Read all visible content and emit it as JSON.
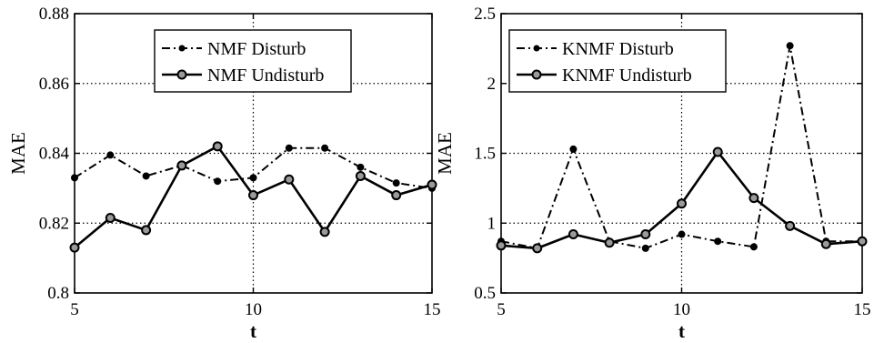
{
  "chart_data": [
    {
      "type": "line",
      "title": "",
      "xlabel": "t",
      "ylabel": "MAE",
      "xlim": [
        5,
        15
      ],
      "ylim": [
        0.8,
        0.88
      ],
      "xticks": [
        5,
        10,
        15
      ],
      "xtick_labels": [
        "5",
        "10",
        "15"
      ],
      "yticks": [
        0.8,
        0.82,
        0.84,
        0.86,
        0.88
      ],
      "ytick_labels": [
        "0.8",
        "0.82",
        "0.84",
        "0.86",
        "0.88"
      ],
      "grid": true,
      "legend_position": "top-center",
      "x": [
        5,
        6,
        7,
        8,
        9,
        10,
        11,
        12,
        13,
        14,
        15
      ],
      "series": [
        {
          "name": "NMF Disturb",
          "style": "dash-dot",
          "marker": "dot",
          "values": [
            0.833,
            0.8395,
            0.8335,
            0.8365,
            0.832,
            0.833,
            0.8415,
            0.8415,
            0.836,
            0.8315,
            0.83
          ]
        },
        {
          "name": "NMF Undisturb",
          "style": "solid",
          "marker": "circle",
          "values": [
            0.813,
            0.8215,
            0.818,
            0.8365,
            0.842,
            0.828,
            0.8325,
            0.8175,
            0.8335,
            0.828,
            0.831
          ]
        }
      ]
    },
    {
      "type": "line",
      "title": "",
      "xlabel": "t",
      "ylabel": "MAE",
      "xlim": [
        5,
        15
      ],
      "ylim": [
        0.5,
        2.5
      ],
      "xticks": [
        5,
        10,
        15
      ],
      "xtick_labels": [
        "5",
        "10",
        "15"
      ],
      "yticks": [
        0.5,
        1,
        1.5,
        2,
        2.5
      ],
      "ytick_labels": [
        "0.5",
        "1",
        "1.5",
        "2",
        "2.5"
      ],
      "grid": true,
      "legend_position": "top-left",
      "x": [
        5,
        6,
        7,
        8,
        9,
        10,
        11,
        12,
        13,
        14,
        15
      ],
      "series": [
        {
          "name": "KNMF Disturb",
          "style": "dash-dot",
          "marker": "dot",
          "values": [
            0.87,
            0.82,
            1.53,
            0.87,
            0.82,
            0.92,
            0.87,
            0.83,
            2.27,
            0.87,
            0.87
          ]
        },
        {
          "name": "KNMF Undisturb",
          "style": "solid",
          "marker": "circle",
          "values": [
            0.84,
            0.82,
            0.92,
            0.86,
            0.92,
            1.14,
            1.51,
            1.18,
            0.98,
            0.85,
            0.87
          ]
        }
      ]
    }
  ],
  "colors": {
    "line": "#000000",
    "grid": "#000000",
    "background": "#ffffff"
  }
}
